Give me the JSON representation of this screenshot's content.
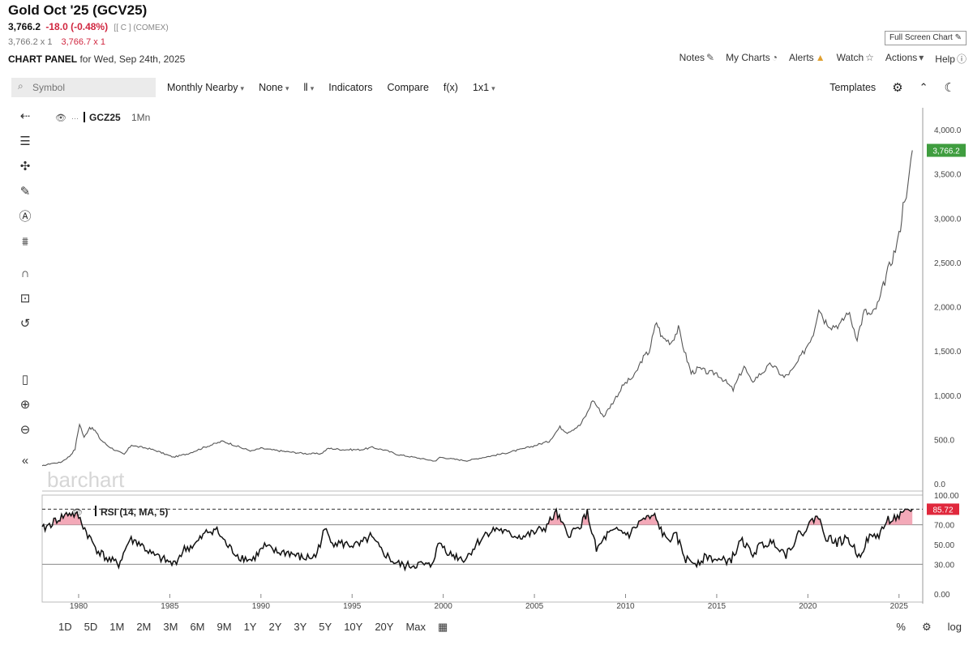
{
  "header": {
    "title": "Gold Oct '25 (GCV25)",
    "last": "3,766.2",
    "change": "-18.0 (-0.48%)",
    "exchange": "[[ C ] (COMEX)",
    "bid": "3,766.2 x 1",
    "ask": "3,766.7 x 1",
    "panel_label": "CHART PANEL",
    "panel_date": "for Wed, Sep 24th, 2025",
    "full_chart_button": "Full Screen Chart"
  },
  "top_links": [
    "Notes",
    "My Charts",
    "Alerts",
    "Watch",
    "Actions",
    "Help"
  ],
  "toolbar": {
    "symbol_placeholder": "Symbol",
    "period": "Monthly Nearby",
    "compare_mode": "None",
    "bar_type_icon": "candles-icon",
    "indicators": "Indicators",
    "compare": "Compare",
    "fx": "f(x)",
    "layout": "1x1",
    "templates": "Templates"
  },
  "chart_labels": {
    "main_symbol": "GCZ25",
    "main_interval": "1Mn",
    "rsi_label": "RSI (14, MA, 5)",
    "watermark": "barchart"
  },
  "price_tags": {
    "last": "3,766.2",
    "rsi": "85.72"
  },
  "chart_data": [
    {
      "type": "line",
      "x_axis": {
        "ticks": [
          "1980",
          "1985",
          "1990",
          "1995",
          "2000",
          "2005",
          "2010",
          "2015",
          "2020",
          "2025"
        ]
      },
      "y_axis": {
        "scale": "linear",
        "ticks": [
          "0.0",
          "500.0",
          "1,000.0",
          "1,500.0",
          "2,000.0",
          "2,500.0",
          "3,000.0",
          "3,500.0",
          "4,000.0"
        ],
        "range": [
          0,
          4000
        ],
        "position": "right"
      },
      "series": [
        {
          "name": "GCZ25",
          "points": [
            [
              1978.0,
              200
            ],
            [
              1978.5,
              230
            ],
            [
              1979.0,
              240
            ],
            [
              1979.5,
              310
            ],
            [
              1979.8,
              390
            ],
            [
              1980.05,
              680
            ],
            [
              1980.3,
              520
            ],
            [
              1980.6,
              640
            ],
            [
              1980.9,
              600
            ],
            [
              1981.2,
              500
            ],
            [
              1981.6,
              430
            ],
            [
              1982.0,
              380
            ],
            [
              1982.5,
              330
            ],
            [
              1982.9,
              440
            ],
            [
              1983.2,
              420
            ],
            [
              1983.8,
              400
            ],
            [
              1984.3,
              370
            ],
            [
              1984.8,
              330
            ],
            [
              1985.2,
              300
            ],
            [
              1985.6,
              320
            ],
            [
              1986.0,
              340
            ],
            [
              1986.5,
              380
            ],
            [
              1987.0,
              420
            ],
            [
              1987.9,
              480
            ],
            [
              1988.5,
              440
            ],
            [
              1989.0,
              400
            ],
            [
              1989.5,
              370
            ],
            [
              1990.0,
              400
            ],
            [
              1990.7,
              380
            ],
            [
              1991.5,
              360
            ],
            [
              1992.5,
              340
            ],
            [
              1993.3,
              340
            ],
            [
              1993.7,
              400
            ],
            [
              1994.5,
              385
            ],
            [
              1995.5,
              385
            ],
            [
              1996.1,
              410
            ],
            [
              1996.8,
              380
            ],
            [
              1997.5,
              330
            ],
            [
              1998.5,
              295
            ],
            [
              1999.6,
              255
            ],
            [
              1999.8,
              300
            ],
            [
              2000.5,
              280
            ],
            [
              2001.3,
              260
            ],
            [
              2002.0,
              290
            ],
            [
              2002.8,
              320
            ],
            [
              2003.5,
              350
            ],
            [
              2004.3,
              390
            ],
            [
              2005.0,
              430
            ],
            [
              2005.8,
              480
            ],
            [
              2006.4,
              640
            ],
            [
              2006.8,
              580
            ],
            [
              2007.5,
              660
            ],
            [
              2007.9,
              800
            ],
            [
              2008.2,
              950
            ],
            [
              2008.8,
              760
            ],
            [
              2009.3,
              920
            ],
            [
              2009.9,
              1120
            ],
            [
              2010.5,
              1220
            ],
            [
              2010.9,
              1400
            ],
            [
              2011.3,
              1500
            ],
            [
              2011.7,
              1830
            ],
            [
              2012.0,
              1650
            ],
            [
              2012.5,
              1600
            ],
            [
              2012.9,
              1750
            ],
            [
              2013.3,
              1450
            ],
            [
              2013.6,
              1250
            ],
            [
              2014.0,
              1300
            ],
            [
              2014.6,
              1250
            ],
            [
              2015.0,
              1250
            ],
            [
              2015.5,
              1150
            ],
            [
              2015.9,
              1060
            ],
            [
              2016.5,
              1330
            ],
            [
              2016.9,
              1150
            ],
            [
              2017.5,
              1260
            ],
            [
              2018.0,
              1350
            ],
            [
              2018.7,
              1200
            ],
            [
              2019.2,
              1290
            ],
            [
              2019.8,
              1500
            ],
            [
              2020.3,
              1700
            ],
            [
              2020.6,
              2000
            ],
            [
              2020.9,
              1850
            ],
            [
              2021.3,
              1780
            ],
            [
              2021.8,
              1800
            ],
            [
              2022.2,
              1950
            ],
            [
              2022.7,
              1650
            ],
            [
              2023.1,
              1950
            ],
            [
              2023.5,
              1900
            ],
            [
              2023.9,
              2050
            ],
            [
              2024.3,
              2350
            ],
            [
              2024.8,
              2650
            ],
            [
              2025.0,
              2800
            ],
            [
              2025.3,
              3250
            ],
            [
              2025.5,
              3350
            ],
            [
              2025.73,
              3766.2
            ]
          ]
        }
      ]
    },
    {
      "type": "line",
      "title": "RSI (14, MA, 5)",
      "y_axis": {
        "ticks": [
          "0.00",
          "30.00",
          "50.00",
          "70.00",
          "100.00"
        ],
        "range": [
          0,
          100
        ]
      },
      "reference_lines": [
        30,
        70
      ],
      "series": [
        {
          "name": "RSI (14, MA, 5)",
          "points": [
            [
              1978.0,
              65
            ],
            [
              1978.8,
              75
            ],
            [
              1979.5,
              82
            ],
            [
              1980.0,
              78
            ],
            [
              1980.5,
              60
            ],
            [
              1981.0,
              45
            ],
            [
              1981.6,
              35
            ],
            [
              1982.2,
              30
            ],
            [
              1982.8,
              55
            ],
            [
              1983.3,
              52
            ],
            [
              1984.0,
              40
            ],
            [
              1984.6,
              35
            ],
            [
              1985.2,
              30
            ],
            [
              1985.8,
              45
            ],
            [
              1986.4,
              50
            ],
            [
              1987.0,
              62
            ],
            [
              1987.5,
              66
            ],
            [
              1988.2,
              48
            ],
            [
              1988.8,
              38
            ],
            [
              1989.5,
              34
            ],
            [
              1990.2,
              48
            ],
            [
              1990.9,
              42
            ],
            [
              1991.5,
              42
            ],
            [
              1992.3,
              36
            ],
            [
              1993.0,
              38
            ],
            [
              1993.5,
              65
            ],
            [
              1994.0,
              52
            ],
            [
              1994.7,
              50
            ],
            [
              1995.4,
              49
            ],
            [
              1996.0,
              58
            ],
            [
              1996.6,
              44
            ],
            [
              1997.3,
              32
            ],
            [
              1997.9,
              28
            ],
            [
              1998.7,
              30
            ],
            [
              1999.3,
              28
            ],
            [
              1999.8,
              52
            ],
            [
              2000.4,
              40
            ],
            [
              2001.2,
              35
            ],
            [
              2001.8,
              50
            ],
            [
              2002.4,
              62
            ],
            [
              2003.0,
              66
            ],
            [
              2003.6,
              60
            ],
            [
              2004.4,
              58
            ],
            [
              2005.0,
              62
            ],
            [
              2005.6,
              67
            ],
            [
              2006.2,
              82
            ],
            [
              2006.8,
              60
            ],
            [
              2007.4,
              66
            ],
            [
              2007.9,
              82
            ],
            [
              2008.4,
              44
            ],
            [
              2009.0,
              60
            ],
            [
              2009.6,
              64
            ],
            [
              2010.2,
              60
            ],
            [
              2010.9,
              75
            ],
            [
              2011.6,
              78
            ],
            [
              2012.2,
              55
            ],
            [
              2012.8,
              58
            ],
            [
              2013.3,
              35
            ],
            [
              2013.9,
              32
            ],
            [
              2014.5,
              38
            ],
            [
              2015.2,
              33
            ],
            [
              2015.8,
              35
            ],
            [
              2016.4,
              55
            ],
            [
              2016.9,
              40
            ],
            [
              2017.5,
              50
            ],
            [
              2018.2,
              52
            ],
            [
              2018.8,
              40
            ],
            [
              2019.4,
              58
            ],
            [
              2019.9,
              66
            ],
            [
              2020.5,
              80
            ],
            [
              2021.0,
              58
            ],
            [
              2021.6,
              52
            ],
            [
              2022.2,
              56
            ],
            [
              2022.8,
              38
            ],
            [
              2023.3,
              56
            ],
            [
              2023.9,
              60
            ],
            [
              2024.4,
              75
            ],
            [
              2025.0,
              78
            ],
            [
              2025.73,
              85.72
            ]
          ]
        }
      ]
    }
  ],
  "range_buttons": [
    "1D",
    "5D",
    "1M",
    "2M",
    "3M",
    "6M",
    "9M",
    "1Y",
    "2Y",
    "3Y",
    "5Y",
    "10Y",
    "20Y",
    "Max"
  ],
  "bottom_right": [
    "%",
    "log"
  ]
}
